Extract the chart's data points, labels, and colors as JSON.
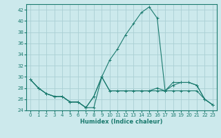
{
  "xlabel": "Humidex (Indice chaleur)",
  "xlim": [
    -0.5,
    23.5
  ],
  "ylim": [
    24,
    43
  ],
  "yticks": [
    24,
    26,
    28,
    30,
    32,
    34,
    36,
    38,
    40,
    42
  ],
  "xticks": [
    0,
    1,
    2,
    3,
    4,
    5,
    6,
    7,
    8,
    9,
    10,
    11,
    12,
    13,
    14,
    15,
    16,
    17,
    18,
    19,
    20,
    21,
    22,
    23
  ],
  "bg_color": "#cce9ec",
  "grid_color": "#aacfd4",
  "line_color": "#1a7a6e",
  "line1_y": [
    29.5,
    28.0,
    27.0,
    26.5,
    26.5,
    25.5,
    25.5,
    24.5,
    24.5,
    30.0,
    27.5,
    27.5,
    27.5,
    27.5,
    27.5,
    27.5,
    27.5,
    27.5,
    27.5,
    27.5,
    27.5,
    27.5,
    26.0,
    25.0
  ],
  "line2_y": [
    29.5,
    28.0,
    27.0,
    26.5,
    26.5,
    25.5,
    25.5,
    24.5,
    26.5,
    30.0,
    33.0,
    35.0,
    37.5,
    39.5,
    41.5,
    42.5,
    40.5,
    27.5,
    28.5,
    29.0,
    29.0,
    28.5,
    26.0,
    25.0
  ],
  "line3_y": [
    29.5,
    28.0,
    27.0,
    26.5,
    26.5,
    25.5,
    25.5,
    24.5,
    26.5,
    30.0,
    27.5,
    27.5,
    27.5,
    27.5,
    27.5,
    27.5,
    28.0,
    27.5,
    29.0,
    29.0,
    29.0,
    28.5,
    26.0,
    25.0
  ],
  "xlabel_fontsize": 6.0,
  "tick_fontsize": 5.0,
  "linewidth": 0.8,
  "markersize": 2.5
}
